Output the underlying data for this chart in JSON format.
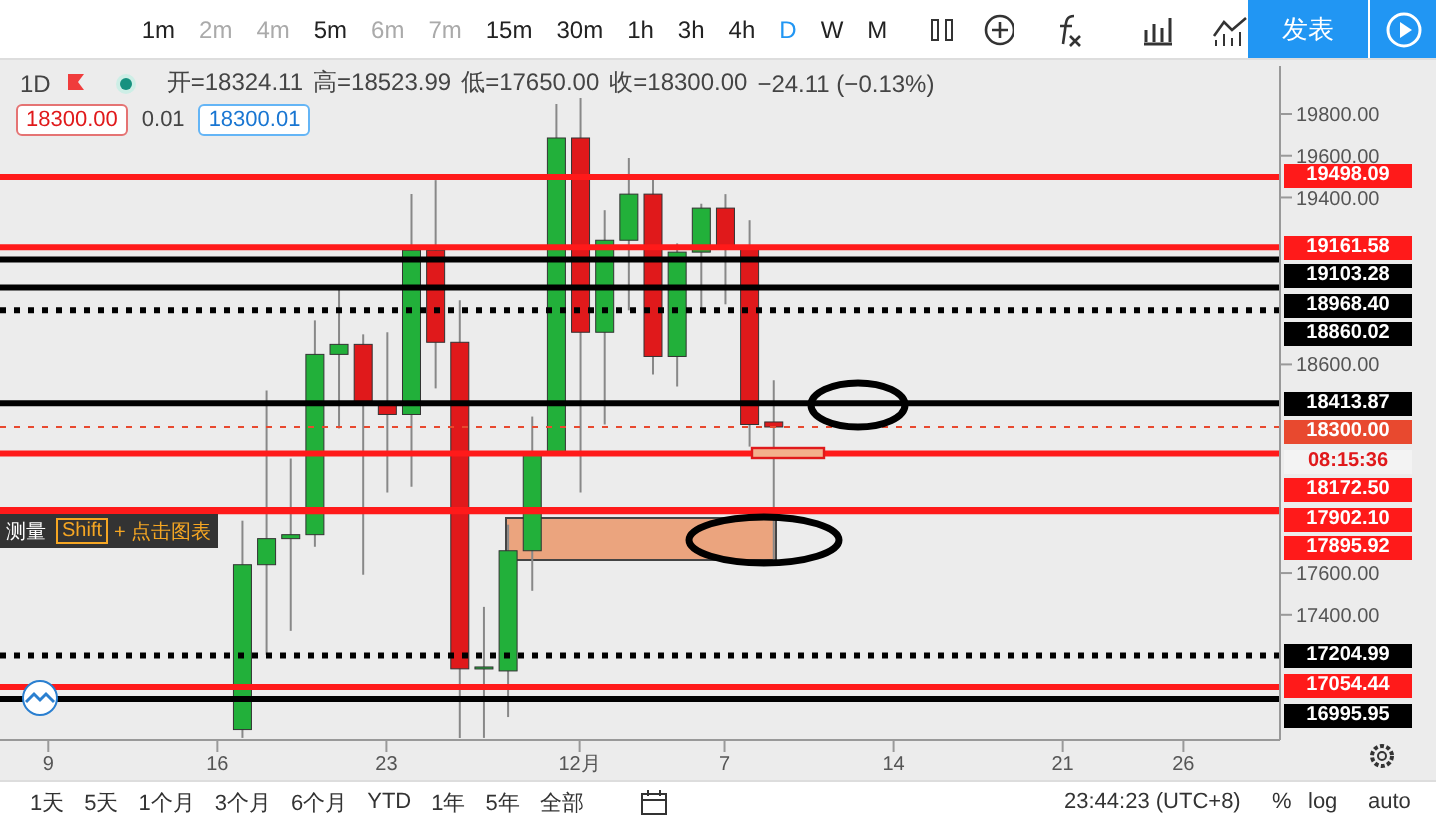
{
  "chart_data": {
    "type": "candlestick",
    "x": [
      "--11-17",
      "--11-18",
      "--11-19",
      "--11-20",
      "--11-21",
      "--11-22",
      "--11-23",
      "--11-24",
      "--11-25",
      "--11-26",
      "--11-27",
      "--11-28",
      "--11-29",
      "--11-30",
      "--12-01",
      "--12-02",
      "--12-03",
      "--12-04",
      "--12-05",
      "--12-06",
      "--12-07",
      "--12-08",
      "--12-09"
    ],
    "ohlc": [
      [
        16850,
        17851,
        16810,
        17640
      ],
      [
        17640,
        18475,
        17208,
        17765
      ],
      [
        17765,
        18149,
        17323,
        17784
      ],
      [
        17784,
        18811,
        17726,
        18648
      ],
      [
        18648,
        18965,
        18293,
        18696
      ],
      [
        18696,
        18744,
        17592,
        18408
      ],
      [
        18408,
        18754,
        17986,
        18360
      ],
      [
        18360,
        19416,
        18014,
        19147
      ],
      [
        19147,
        19483,
        18485,
        18706
      ],
      [
        18706,
        18907,
        16810,
        17141
      ],
      [
        17141,
        17438,
        16810,
        17150
      ],
      [
        17131,
        17832,
        16910,
        17707
      ],
      [
        17707,
        18350,
        17515,
        18168
      ],
      [
        18178,
        19848,
        18178,
        19685
      ],
      [
        19685,
        19877,
        17986,
        18754
      ],
      [
        18754,
        19339,
        18312,
        19195
      ],
      [
        19195,
        19589,
        18859,
        19416
      ],
      [
        19416,
        19512,
        18552,
        18638
      ],
      [
        18638,
        19180,
        18494,
        19138
      ],
      [
        19138,
        19370,
        18859,
        19349
      ],
      [
        19349,
        19416,
        18888,
        19166
      ],
      [
        19166,
        19291,
        18206,
        18312
      ],
      [
        18324.11,
        18523.99,
        17650,
        18300
      ]
    ],
    "colors": [
      "#22b03a",
      "#22b03a",
      "#22b03a",
      "#22b03a",
      "#22b03a",
      "#e0191b",
      "#e0191b",
      "#22b03a",
      "#e0191b",
      "#e0191b",
      "#22b03a",
      "#22b03a",
      "#22b03a",
      "#22b03a",
      "#e0191b",
      "#22b03a",
      "#22b03a",
      "#e0191b",
      "#22b03a",
      "#22b03a",
      "#e0191b",
      "#e0191b",
      "#e0191b"
    ],
    "xlim": [
      "--11-07",
      "--12-30"
    ],
    "xticks": [
      {
        "value": "--11-09",
        "label": "9"
      },
      {
        "value": "--11-16",
        "label": "16"
      },
      {
        "value": "--11-23",
        "label": "23"
      },
      {
        "value": "--12-01",
        "label": "12月"
      },
      {
        "value": "--12-07",
        "label": "7"
      },
      {
        "value": "--12-14",
        "label": "14"
      },
      {
        "value": "--12-21",
        "label": "21"
      },
      {
        "value": "--12-26",
        "label": "26"
      }
    ],
    "ylim": [
      16800,
      20030
    ],
    "yticks": [
      {
        "value": 17400,
        "label": "17400.00"
      },
      {
        "value": 17600,
        "label": "17600.00"
      },
      {
        "value": 18600,
        "label": "18600.00"
      },
      {
        "value": 19400,
        "label": "19400.00"
      },
      {
        "value": 19600,
        "label": "19600.00"
      },
      {
        "value": 19800,
        "label": "19800.00"
      }
    ],
    "grid": false,
    "legend": false,
    "ref_lines": [
      {
        "axis": "y",
        "value": 19498.09,
        "label": "19498.09",
        "color": "#ff1a1a",
        "line_style": "solid"
      },
      {
        "axis": "y",
        "value": 19161.58,
        "label": "19161.58",
        "color": "#ff1a1a",
        "line_style": "solid"
      },
      {
        "axis": "y",
        "value": 19103.28,
        "label": "19103.28",
        "color": "#000000",
        "line_style": "solid"
      },
      {
        "axis": "y",
        "value": 18968.4,
        "label": "18968.40",
        "color": "#000000",
        "line_style": "solid"
      },
      {
        "axis": "y",
        "value": 18860.02,
        "label": "18860.02",
        "color": "#000000",
        "line_style": "dotted"
      },
      {
        "axis": "y",
        "value": 18413.87,
        "label": "18413.87",
        "color": "#000000",
        "line_style": "solid"
      },
      {
        "axis": "y",
        "value": 18300,
        "label": "18300.00",
        "color": "#e8492f",
        "line_style": "dotted"
      },
      {
        "axis": "y",
        "value": 18172.5,
        "label": "18172.50",
        "color": "#ff1a1a",
        "line_style": "solid"
      },
      {
        "axis": "y",
        "value": 17902.1,
        "label": "17902.10",
        "color": "#ff1a1a",
        "line_style": "solid"
      },
      {
        "axis": "y",
        "value": 17895.92,
        "label": "17895.92",
        "color": "#ff1a1a",
        "line_style": "solid"
      },
      {
        "axis": "y",
        "value": 17204.99,
        "label": "17204.99",
        "color": "#000000",
        "line_style": "dotted"
      },
      {
        "axis": "y",
        "value": 17054.44,
        "label": "17054.44",
        "color": "#ff1a1a",
        "line_style": "solid"
      },
      {
        "axis": "y",
        "value": 16995.95,
        "label": "16995.95",
        "color": "#000000",
        "line_style": "solid"
      }
    ],
    "annotations": [
      "1m",
      "2m",
      "4m",
      "5m",
      "6m",
      "7m",
      "15m",
      "30m",
      "1h",
      "3h",
      "4h",
      "D",
      "W",
      "M",
      "发表",
      "1D",
      "开=18324.11",
      "高=18523.99",
      "低=17650.00",
      "收=18300.00",
      "−24.11 (−0.13%)",
      "18300.00",
      "0.01",
      "18300.01",
      "测量",
      "Shift",
      "+ 点击图表",
      "08:15:36",
      "1天",
      "5天",
      "1个月",
      "3个月",
      "6个月",
      "YTD",
      "1年",
      "5年",
      "全部",
      "23:44:23 (UTC+8)",
      "%",
      "log",
      "auto"
    ]
  }
}
